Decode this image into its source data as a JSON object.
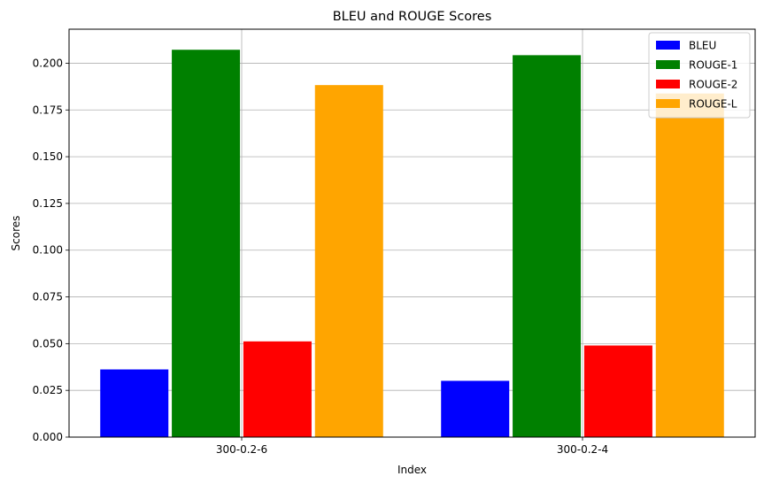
{
  "chart_data": {
    "type": "bar",
    "title": "BLEU and ROUGE Scores",
    "xlabel": "Index",
    "ylabel": "Scores",
    "categories": [
      "300-0.2-6",
      "300-0.2-4"
    ],
    "series": [
      {
        "name": "BLEU",
        "color": "#0000ff",
        "values": [
          0.0362,
          0.0301
        ]
      },
      {
        "name": "ROUGE-1",
        "color": "#008000",
        "values": [
          0.2072,
          0.2043
        ]
      },
      {
        "name": "ROUGE-2",
        "color": "#ff0000",
        "values": [
          0.0512,
          0.049
        ]
      },
      {
        "name": "ROUGE-L",
        "color": "#ffa500",
        "values": [
          0.1883,
          0.1838
        ]
      }
    ],
    "ylim": [
      0,
      0.2182
    ],
    "yticks": [
      "0.000",
      "0.025",
      "0.050",
      "0.075",
      "0.100",
      "0.125",
      "0.150",
      "0.175",
      "0.200"
    ],
    "grid": true,
    "legend_position": "top-right"
  }
}
